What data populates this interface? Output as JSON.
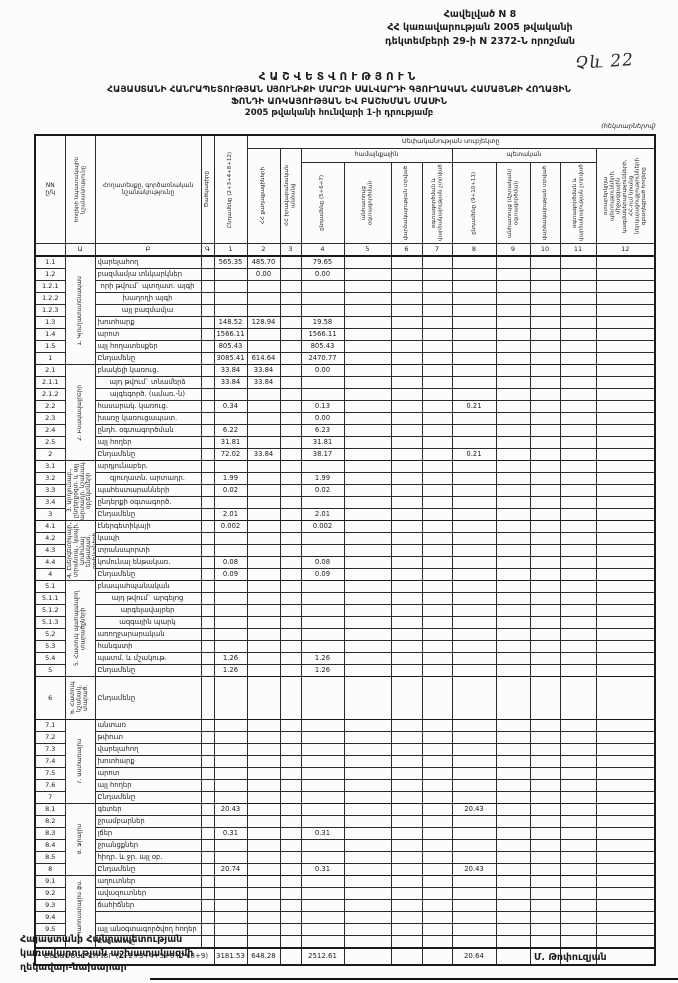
{
  "annex": {
    "line1": "Հավելված N 8",
    "line2": "ՀՀ կառավարության 2005 թվականի",
    "line3": "դեկտեմբերի 29-ի N 2372-Ն որոշման"
  },
  "handwritten_note": "Չև 22",
  "title": {
    "line1": "ՀԱՇՎԵՏՎՈՒԹՅՈՒՆ",
    "line2": "ՀԱՅԱՍՏԱՆԻ ՀԱՆՐԱՊԵՏՈՒԹՅԱՆ ՍՅՈՒՆԻՔԻ ՄԱՐԶԻ ՍԱԼՎԱՐԴԻ ԳՅՈՒՂԱԿԱՆ ՀԱՄԱՅՆՔԻ ՀՈՂԱՅԻՆ",
    "line3": "ՖՈՆԴԻ ԱՌԿԱՅՈՒԹՅԱՆ ԵՎ ԲԱՇԽՄԱՆ ՄԱՍԻՆ",
    "line4": "2005 թվականի հունվարի 1-ի դրությամբ"
  },
  "units_note": "(հեկտարներով)",
  "table": {
    "header": {
      "nn": "NN\nը/կ",
      "category": "հողերի նպատակային նշանակությունը",
      "landtype": "Հողատեսքը, գործառնական նշանակությունը",
      "code": "Ծածկագիրը",
      "c1": "Ընդամենը (2+3+4+8+12)",
      "ownership_span": "Սեփականության սուբյեկտը",
      "c2": "ՀՀ քաղաքացիների",
      "c3": "ՀՀ իրավաբանական անձանց",
      "community_span": "համայնքային",
      "state_span": "պետական",
      "c4": "ընդամենը (5+6+7)",
      "c5": "անհատույց օգտագործման",
      "c6": "վարձակալության տրված",
      "c7": "օգտագործման և վարձակալության չտրված",
      "c8": "ընդամենը (9+10+11)",
      "c9": "անհատույց (մշտական) օգտագործման",
      "c10": "վարձակալության տրված",
      "c11": "օգտագործման և վարձակալության չտրված",
      "c12": "օտարերկրյա պետությունների, միջազգային կազմակերպությունների, ՀՀ-ում նրանց ներկայացուցչությունների զբաղեցրած հողերը",
      "index": [
        "",
        "Ա",
        "Բ",
        "Գ",
        "1",
        "2",
        "3",
        "4",
        "5",
        "6",
        "7",
        "8",
        "9",
        "10",
        "11",
        "12"
      ]
    },
    "sections": [
      {
        "group": "1. Գյուղատնտեսական",
        "rows": [
          {
            "nn": "1.1",
            "name": "վարելահող",
            "c1": "565.35",
            "c2": "485.70",
            "c4": "79.65"
          },
          {
            "nn": "1.2",
            "name": "բազմամյա տնկարկներ",
            "c2": "0.00",
            "c4": "0.00"
          },
          {
            "nn": "1.2.1",
            "name": "որի թվում` պտղատ. այգի",
            "indent": true
          },
          {
            "nn": "1.2.2",
            "name": "խաղողի այգի",
            "indent": true
          },
          {
            "nn": "1.2.3",
            "name": "այլ բազմամյա",
            "indent": true
          },
          {
            "nn": "1.3",
            "name": "խոտհարք",
            "c1": "148.52",
            "c2": "128.94",
            "c4": "19.58"
          },
          {
            "nn": "1.4",
            "name": "արոտ",
            "c1": "1566.11",
            "c4": "1566.11"
          },
          {
            "nn": "1.5",
            "name": "այլ հողատեսքեր",
            "c1": "805.43",
            "c4": "805.43"
          },
          {
            "nn": "1",
            "name": "Ընդամենը",
            "total": true,
            "c1": "3085.41",
            "c2": "614.64",
            "c4": "2470.77"
          }
        ]
      },
      {
        "group": "2. Բնակավայրերի",
        "rows": [
          {
            "nn": "2.1",
            "name": "բնակելի կառուց.",
            "c1": "33.84",
            "c2": "33.84",
            "c4": "0.00"
          },
          {
            "nn": "2.1.1",
            "name": "այդ թվում` տնամերձ",
            "indent": true,
            "c1": "33.84",
            "c2": "33.84"
          },
          {
            "nn": "2.1.2",
            "name": "այգեգործ. (ամառ.-ն)",
            "indent": true
          },
          {
            "nn": "2.2",
            "name": "հասարակ. կառուց.",
            "c1": "0.34",
            "c4": "0.13",
            "c8": "0.21"
          },
          {
            "nn": "2.3",
            "name": "խառը կառուցապատ.",
            "c4": "0.00"
          },
          {
            "nn": "2.4",
            "name": "ընդհ. օգտագործման",
            "c1": "6.22",
            "c4": "6.23"
          },
          {
            "nn": "2.5",
            "name": "այլ հողեր",
            "c1": "31.81",
            "c4": "31.81"
          },
          {
            "nn": "2",
            "name": "Ընդամենը",
            "total": true,
            "c1": "72.02",
            "c2": "33.84",
            "c4": "38.17",
            "c8": "0.21"
          }
        ]
      },
      {
        "group": "3. Արդյունաբ., ընդերքօգտ. և այլ արտադր. նշանակ. օբյեկտների",
        "rows": [
          {
            "nn": "3.1",
            "name": "արդյունաբեր."
          },
          {
            "nn": "3.2",
            "name": "գյուղատն. արտադր.",
            "indent": true,
            "c1": "1.99",
            "c4": "1.99"
          },
          {
            "nn": "3.3",
            "name": "պահեստարանների",
            "c1": "0.02",
            "c4": "0.02"
          },
          {
            "nn": "3.4",
            "name": "ընդերքի օգտագործ."
          },
          {
            "nn": "3",
            "name": "Ընդամենը",
            "total": true,
            "c1": "2.01",
            "c4": "2.01"
          }
        ]
      },
      {
        "group": "4. Էներգետիկայի, տրանսպ., կապի, կոմունալ ենթակառ. օբյեկտների",
        "rows": [
          {
            "nn": "4.1",
            "name": "էներգետիկայի",
            "c1": "0.002",
            "c4": "0.002"
          },
          {
            "nn": "4.2",
            "name": "կապի"
          },
          {
            "nn": "4.3",
            "name": "տրանսպորտի"
          },
          {
            "nn": "4.4",
            "name": "կոմունալ ենթակառ.",
            "c1": "0.08",
            "c4": "0.08"
          },
          {
            "nn": "4",
            "name": "Ընդամենը",
            "total": true,
            "c1": "0.09",
            "c4": "0.09"
          }
        ]
      },
      {
        "group": "5. Հատուկ պահպանվող տարածքների",
        "rows": [
          {
            "nn": "5.1",
            "name": "բնապահպանական"
          },
          {
            "nn": "5.1.1",
            "name": "այդ թվում` արգելոց",
            "indent": true
          },
          {
            "nn": "5.1.2",
            "name": "արգելավայրեր",
            "indent": true
          },
          {
            "nn": "5.1.3",
            "name": "ազգային պարկ",
            "indent": true
          },
          {
            "nn": "5.2",
            "name": "առողջարարական"
          },
          {
            "nn": "5.3",
            "name": "հանգստի"
          },
          {
            "nn": "5.4",
            "name": "պատմ. և մշակութ.",
            "c1": "1.26",
            "c4": "1.26"
          },
          {
            "nn": "5",
            "name": "Ընդամենը",
            "total": true,
            "c1": "1.26",
            "c4": "1.26"
          }
        ]
      },
      {
        "group": "6. Հատուկ նշանակ. տարած.",
        "rows": [
          {
            "nn": "6",
            "name": "Ընդամենը",
            "total": true,
            "tall": true
          }
        ]
      },
      {
        "group": "7. Անտառային",
        "rows": [
          {
            "nn": "7.1",
            "name": "անտառ"
          },
          {
            "nn": "7.2",
            "name": "թփուտ"
          },
          {
            "nn": "7.3",
            "name": "վարելահող"
          },
          {
            "nn": "7.4",
            "name": "խոտհարք"
          },
          {
            "nn": "7.5",
            "name": "արոտ"
          },
          {
            "nn": "7.6",
            "name": "այլ հողեր"
          },
          {
            "nn": "7",
            "name": "Ընդամենը",
            "total": true
          }
        ]
      },
      {
        "group": "8. Ջրային",
        "rows": [
          {
            "nn": "8.1",
            "name": "գետեր",
            "c1": "20.43",
            "c8": "20.43"
          },
          {
            "nn": "8.2",
            "name": "ջրամբարներ"
          },
          {
            "nn": "8.3",
            "name": "լճեր",
            "c1": "0.31",
            "c4": "0.31"
          },
          {
            "nn": "8.4",
            "name": "ջրանցքներ"
          },
          {
            "nn": "8.5",
            "name": "հիդր. և ջր. այլ օբ."
          },
          {
            "nn": "8",
            "name": "Ընդամենը",
            "total": true,
            "c1": "20.74",
            "c4": "0.31",
            "c8": "20.43"
          }
        ]
      },
      {
        "group": "9. Պահուստային ֆն.",
        "rows": [
          {
            "nn": "9.1",
            "name": "աղուտներ"
          },
          {
            "nn": "9.2",
            "name": "ավազուտներ"
          },
          {
            "nn": "9.3",
            "name": "ճահիճներ"
          },
          {
            "nn": "9.4",
            "name": ""
          },
          {
            "nn": "9.5",
            "name": "այլ անօգտագործվող հողեր"
          },
          {
            "nn": "9",
            "name": "Ընդամենը",
            "total": true
          }
        ]
      }
    ],
    "grand_total": {
      "label": "ԸՆԴԱՄԵՆԸ ՀՈՂԵՐ (1+2+3+4+5+6+7+8+9)",
      "c1": "3181.53",
      "c2": "648.28",
      "c4": "2512.61",
      "c8": "20.64"
    }
  },
  "signature": {
    "left_line1": "Հայաստանի Հանրապետության",
    "left_line2": "կառավարության աշխատակազմի",
    "left_line3": "ղեկավար-նախարար",
    "right_name": "Մ. Թոփուզյան"
  }
}
